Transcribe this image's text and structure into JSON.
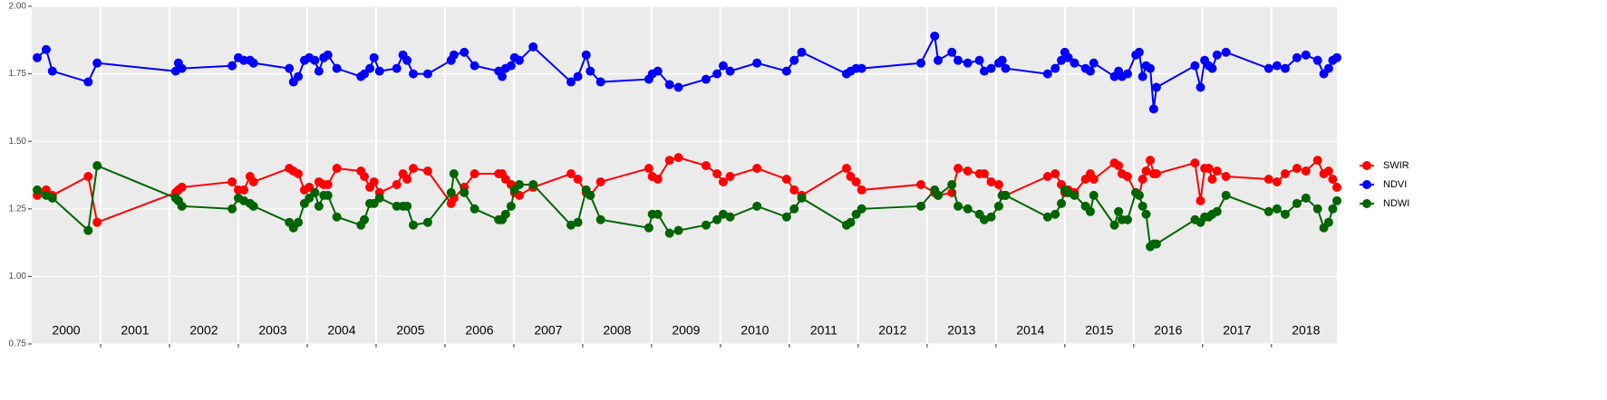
{
  "chart_data": {
    "type": "line",
    "x": [
      2000.08,
      2000.21,
      2000.3,
      2000.82,
      2000.95,
      2002.09,
      2002.13,
      2002.18,
      2002.91,
      2003.0,
      2003.08,
      2003.17,
      2003.22,
      2003.74,
      2003.8,
      2003.87,
      2003.96,
      2004.03,
      2004.11,
      2004.17,
      2004.24,
      2004.3,
      2004.43,
      2004.78,
      2004.83,
      2004.91,
      2004.97,
      2005.05,
      2005.3,
      2005.39,
      2005.45,
      2005.54,
      2005.75,
      2006.09,
      2006.13,
      2006.28,
      2006.43,
      2006.78,
      2006.83,
      2006.88,
      2006.96,
      2007.01,
      2007.08,
      2007.28,
      2007.83,
      2007.93,
      2008.05,
      2008.11,
      2008.26,
      2008.96,
      2009.01,
      2009.09,
      2009.26,
      2009.39,
      2009.79,
      2009.95,
      2010.04,
      2010.14,
      2010.53,
      2010.96,
      2011.07,
      2011.18,
      2011.83,
      2011.89,
      2011.97,
      2012.05,
      2012.91,
      2013.11,
      2013.16,
      2013.36,
      2013.45,
      2013.59,
      2013.76,
      2013.83,
      2013.93,
      2014.04,
      2014.09,
      2014.14,
      2014.75,
      2014.86,
      2014.95,
      2015.0,
      2015.05,
      2015.14,
      2015.3,
      2015.37,
      2015.42,
      2015.72,
      2015.78,
      2015.83,
      2015.91,
      2016.03,
      2016.08,
      2016.13,
      2016.18,
      2016.24,
      2016.29,
      2016.33,
      2016.89,
      2016.97,
      2017.03,
      2017.09,
      2017.14,
      2017.21,
      2017.34,
      2017.96,
      2018.08,
      2018.2,
      2018.37,
      2018.5,
      2018.67,
      2018.76,
      2018.83,
      2018.89,
      2018.95
    ],
    "series": [
      {
        "name": "SWIR",
        "color": "#ff0000",
        "values": [
          1.3,
          1.32,
          1.3,
          1.37,
          1.2,
          1.31,
          1.32,
          1.33,
          1.35,
          1.32,
          1.32,
          1.37,
          1.35,
          1.4,
          1.39,
          1.38,
          1.32,
          1.33,
          1.31,
          1.35,
          1.34,
          1.34,
          1.4,
          1.39,
          1.37,
          1.33,
          1.35,
          1.31,
          1.34,
          1.38,
          1.36,
          1.4,
          1.39,
          1.27,
          1.29,
          1.33,
          1.38,
          1.38,
          1.38,
          1.36,
          1.34,
          1.31,
          1.3,
          1.33,
          1.38,
          1.36,
          1.31,
          1.3,
          1.35,
          1.4,
          1.37,
          1.36,
          1.43,
          1.44,
          1.41,
          1.38,
          1.35,
          1.37,
          1.4,
          1.36,
          1.32,
          1.3,
          1.4,
          1.37,
          1.35,
          1.32,
          1.34,
          1.31,
          1.3,
          1.31,
          1.4,
          1.39,
          1.38,
          1.38,
          1.35,
          1.34,
          1.3,
          1.3,
          1.37,
          1.38,
          1.34,
          1.31,
          1.32,
          1.31,
          1.36,
          1.38,
          1.36,
          1.42,
          1.41,
          1.38,
          1.37,
          1.31,
          1.3,
          1.36,
          1.39,
          1.43,
          1.38,
          1.38,
          1.42,
          1.28,
          1.4,
          1.4,
          1.36,
          1.39,
          1.37,
          1.36,
          1.35,
          1.38,
          1.4,
          1.39,
          1.43,
          1.38,
          1.39,
          1.36,
          1.33
        ]
      },
      {
        "name": "NDVI",
        "color": "#0000ff",
        "values": [
          1.81,
          1.84,
          1.76,
          1.72,
          1.79,
          1.76,
          1.79,
          1.77,
          1.78,
          1.81,
          1.8,
          1.8,
          1.79,
          1.77,
          1.72,
          1.74,
          1.8,
          1.81,
          1.8,
          1.76,
          1.81,
          1.82,
          1.77,
          1.74,
          1.75,
          1.77,
          1.81,
          1.76,
          1.77,
          1.82,
          1.8,
          1.75,
          1.75,
          1.8,
          1.82,
          1.83,
          1.78,
          1.76,
          1.74,
          1.77,
          1.78,
          1.81,
          1.8,
          1.85,
          1.72,
          1.74,
          1.82,
          1.76,
          1.72,
          1.73,
          1.75,
          1.76,
          1.71,
          1.7,
          1.73,
          1.75,
          1.78,
          1.76,
          1.79,
          1.76,
          1.8,
          1.83,
          1.75,
          1.76,
          1.77,
          1.77,
          1.79,
          1.89,
          1.8,
          1.83,
          1.8,
          1.79,
          1.8,
          1.76,
          1.77,
          1.79,
          1.8,
          1.77,
          1.75,
          1.77,
          1.8,
          1.83,
          1.81,
          1.79,
          1.77,
          1.76,
          1.79,
          1.74,
          1.76,
          1.74,
          1.75,
          1.82,
          1.83,
          1.74,
          1.78,
          1.77,
          1.62,
          1.7,
          1.78,
          1.7,
          1.8,
          1.78,
          1.77,
          1.82,
          1.83,
          1.77,
          1.78,
          1.77,
          1.81,
          1.82,
          1.8,
          1.75,
          1.77,
          1.8,
          1.81
        ]
      },
      {
        "name": "NDWI",
        "color": "#006400",
        "values": [
          1.32,
          1.3,
          1.29,
          1.17,
          1.41,
          1.29,
          1.28,
          1.26,
          1.25,
          1.29,
          1.28,
          1.27,
          1.26,
          1.2,
          1.18,
          1.2,
          1.27,
          1.29,
          1.31,
          1.26,
          1.3,
          1.3,
          1.22,
          1.19,
          1.21,
          1.27,
          1.27,
          1.29,
          1.26,
          1.26,
          1.26,
          1.19,
          1.2,
          1.31,
          1.38,
          1.31,
          1.25,
          1.21,
          1.21,
          1.23,
          1.26,
          1.32,
          1.34,
          1.34,
          1.19,
          1.2,
          1.32,
          1.3,
          1.21,
          1.18,
          1.23,
          1.23,
          1.16,
          1.17,
          1.19,
          1.21,
          1.23,
          1.22,
          1.26,
          1.22,
          1.25,
          1.29,
          1.19,
          1.2,
          1.23,
          1.25,
          1.26,
          1.32,
          1.3,
          1.34,
          1.26,
          1.25,
          1.23,
          1.21,
          1.22,
          1.26,
          1.3,
          1.3,
          1.22,
          1.23,
          1.27,
          1.32,
          1.31,
          1.3,
          1.26,
          1.24,
          1.3,
          1.19,
          1.24,
          1.21,
          1.21,
          1.31,
          1.3,
          1.26,
          1.23,
          1.11,
          1.12,
          1.12,
          1.21,
          1.2,
          1.22,
          1.22,
          1.23,
          1.24,
          1.3,
          1.24,
          1.25,
          1.23,
          1.27,
          1.29,
          1.25,
          1.18,
          1.2,
          1.25,
          1.28
        ]
      }
    ],
    "xlim": [
      2000,
      2018.95
    ],
    "xgrid": [
      2001,
      2002,
      2003,
      2004,
      2005,
      2006,
      2007,
      2008,
      2009,
      2010,
      2011,
      2012,
      2013,
      2014,
      2015,
      2016,
      2017,
      2018
    ],
    "xticks": [
      {
        "value": 2000.5,
        "label": "2000"
      },
      {
        "value": 2001.5,
        "label": "2001"
      },
      {
        "value": 2002.5,
        "label": "2002"
      },
      {
        "value": 2003.5,
        "label": "2003"
      },
      {
        "value": 2004.5,
        "label": "2004"
      },
      {
        "value": 2005.5,
        "label": "2005"
      },
      {
        "value": 2006.5,
        "label": "2006"
      },
      {
        "value": 2007.5,
        "label": "2007"
      },
      {
        "value": 2008.5,
        "label": "2008"
      },
      {
        "value": 2009.5,
        "label": "2009"
      },
      {
        "value": 2010.5,
        "label": "2010"
      },
      {
        "value": 2011.5,
        "label": "2011"
      },
      {
        "value": 2012.5,
        "label": "2012"
      },
      {
        "value": 2013.5,
        "label": "2013"
      },
      {
        "value": 2014.5,
        "label": "2014"
      },
      {
        "value": 2015.5,
        "label": "2015"
      },
      {
        "value": 2016.5,
        "label": "2016"
      },
      {
        "value": 2017.5,
        "label": "2017"
      },
      {
        "value": 2018.5,
        "label": "2018"
      }
    ],
    "ylim": [
      0.75,
      2.0
    ],
    "yticks": [
      0.75,
      {
        "value": 1.0,
        "label": "1.00"
      },
      1.25,
      {
        "value": 1.5,
        "label": "1.50"
      },
      1.75,
      {
        "value": 2.0,
        "label": "2.00"
      }
    ],
    "grid": true,
    "legend": "right"
  }
}
